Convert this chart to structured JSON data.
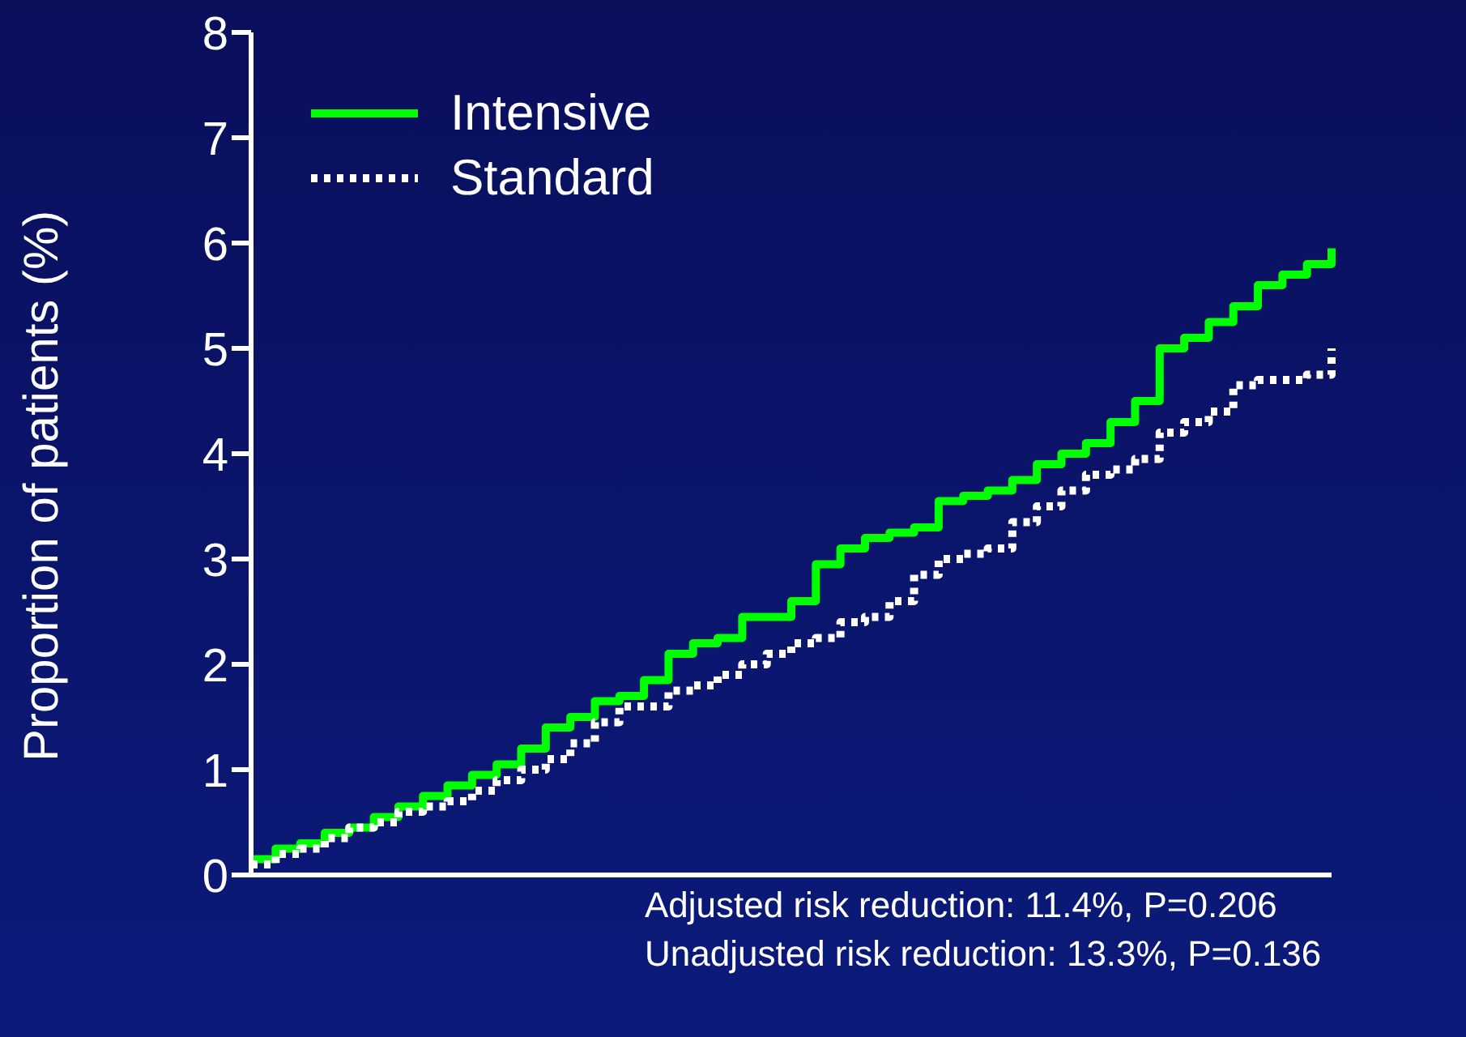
{
  "chart_data": {
    "type": "step",
    "ylabel": "Proportion of patients (%)",
    "categories": [
      null,
      null,
      null,
      null,
      null,
      null,
      null,
      null,
      null,
      null,
      null,
      null,
      null,
      null,
      null,
      null,
      null,
      null,
      null,
      null,
      null,
      null,
      null,
      null,
      null,
      null,
      null,
      null,
      null,
      null,
      null,
      null,
      null,
      null,
      null,
      null,
      null,
      null,
      null,
      null,
      null,
      null,
      null,
      null,
      null
    ],
    "series": [
      {
        "name": "Intensive",
        "color": "#00ff00",
        "line_style": "solid",
        "values": [
          0.15,
          0.25,
          0.3,
          0.4,
          0.45,
          0.55,
          0.65,
          0.75,
          0.85,
          0.95,
          1.05,
          1.2,
          1.4,
          1.5,
          1.65,
          1.7,
          1.85,
          2.1,
          2.2,
          2.25,
          2.45,
          2.45,
          2.6,
          2.95,
          3.1,
          3.2,
          3.25,
          3.3,
          3.55,
          3.6,
          3.65,
          3.75,
          3.9,
          4.0,
          4.1,
          4.3,
          4.5,
          5.0,
          5.1,
          5.25,
          5.4,
          5.6,
          5.7,
          5.8,
          5.95
        ]
      },
      {
        "name": "Standard",
        "color": "#ffffff",
        "line_style": "dotted",
        "values": [
          0.1,
          0.2,
          0.25,
          0.35,
          0.45,
          0.5,
          0.6,
          0.65,
          0.7,
          0.8,
          0.9,
          1.0,
          1.1,
          1.25,
          1.45,
          1.6,
          1.6,
          1.75,
          1.8,
          1.9,
          2.0,
          2.1,
          2.2,
          2.25,
          2.4,
          2.45,
          2.6,
          2.85,
          3.0,
          3.05,
          3.1,
          3.35,
          3.5,
          3.65,
          3.8,
          3.85,
          3.95,
          4.2,
          4.3,
          4.4,
          4.65,
          4.7,
          4.7,
          4.75,
          5.0
        ]
      }
    ],
    "ylim": [
      0,
      8
    ],
    "yticks": [
      0,
      1,
      2,
      3,
      4,
      5,
      6,
      7,
      8
    ],
    "grid": false,
    "legend": "top left",
    "tick_labels": "y",
    "annotations": [
      "Adjusted risk reduction: 11.4%, P=0.206",
      "Unadjusted risk reduction: 13.3%, P=0.136"
    ]
  }
}
